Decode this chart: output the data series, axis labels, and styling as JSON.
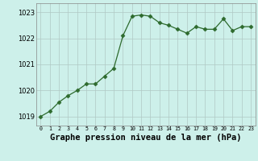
{
  "x": [
    0,
    1,
    2,
    3,
    4,
    5,
    6,
    7,
    8,
    9,
    10,
    11,
    12,
    13,
    14,
    15,
    16,
    17,
    18,
    19,
    20,
    21,
    22,
    23
  ],
  "y": [
    1019.0,
    1019.2,
    1019.55,
    1019.8,
    1020.0,
    1020.25,
    1020.25,
    1020.55,
    1020.85,
    1022.1,
    1022.85,
    1022.9,
    1022.85,
    1022.6,
    1022.5,
    1022.35,
    1022.2,
    1022.45,
    1022.35,
    1022.35,
    1022.75,
    1022.3,
    1022.45,
    1022.45
  ],
  "line_color": "#2d6a2d",
  "marker": "D",
  "marker_size": 2.5,
  "background_color": "#cdf0ea",
  "grid_color": "#b0c8c4",
  "xlabel": "Graphe pression niveau de la mer (hPa)",
  "xlabel_fontsize": 7.5,
  "ylabel_ticks": [
    1019,
    1020,
    1021,
    1022,
    1023
  ],
  "xtick_labels": [
    "0",
    "1",
    "2",
    "3",
    "4",
    "5",
    "6",
    "7",
    "8",
    "9",
    "10",
    "11",
    "12",
    "13",
    "14",
    "15",
    "16",
    "17",
    "18",
    "19",
    "20",
    "21",
    "22",
    "23"
  ],
  "ylim": [
    1018.65,
    1023.35
  ],
  "xlim": [
    -0.5,
    23.5
  ]
}
